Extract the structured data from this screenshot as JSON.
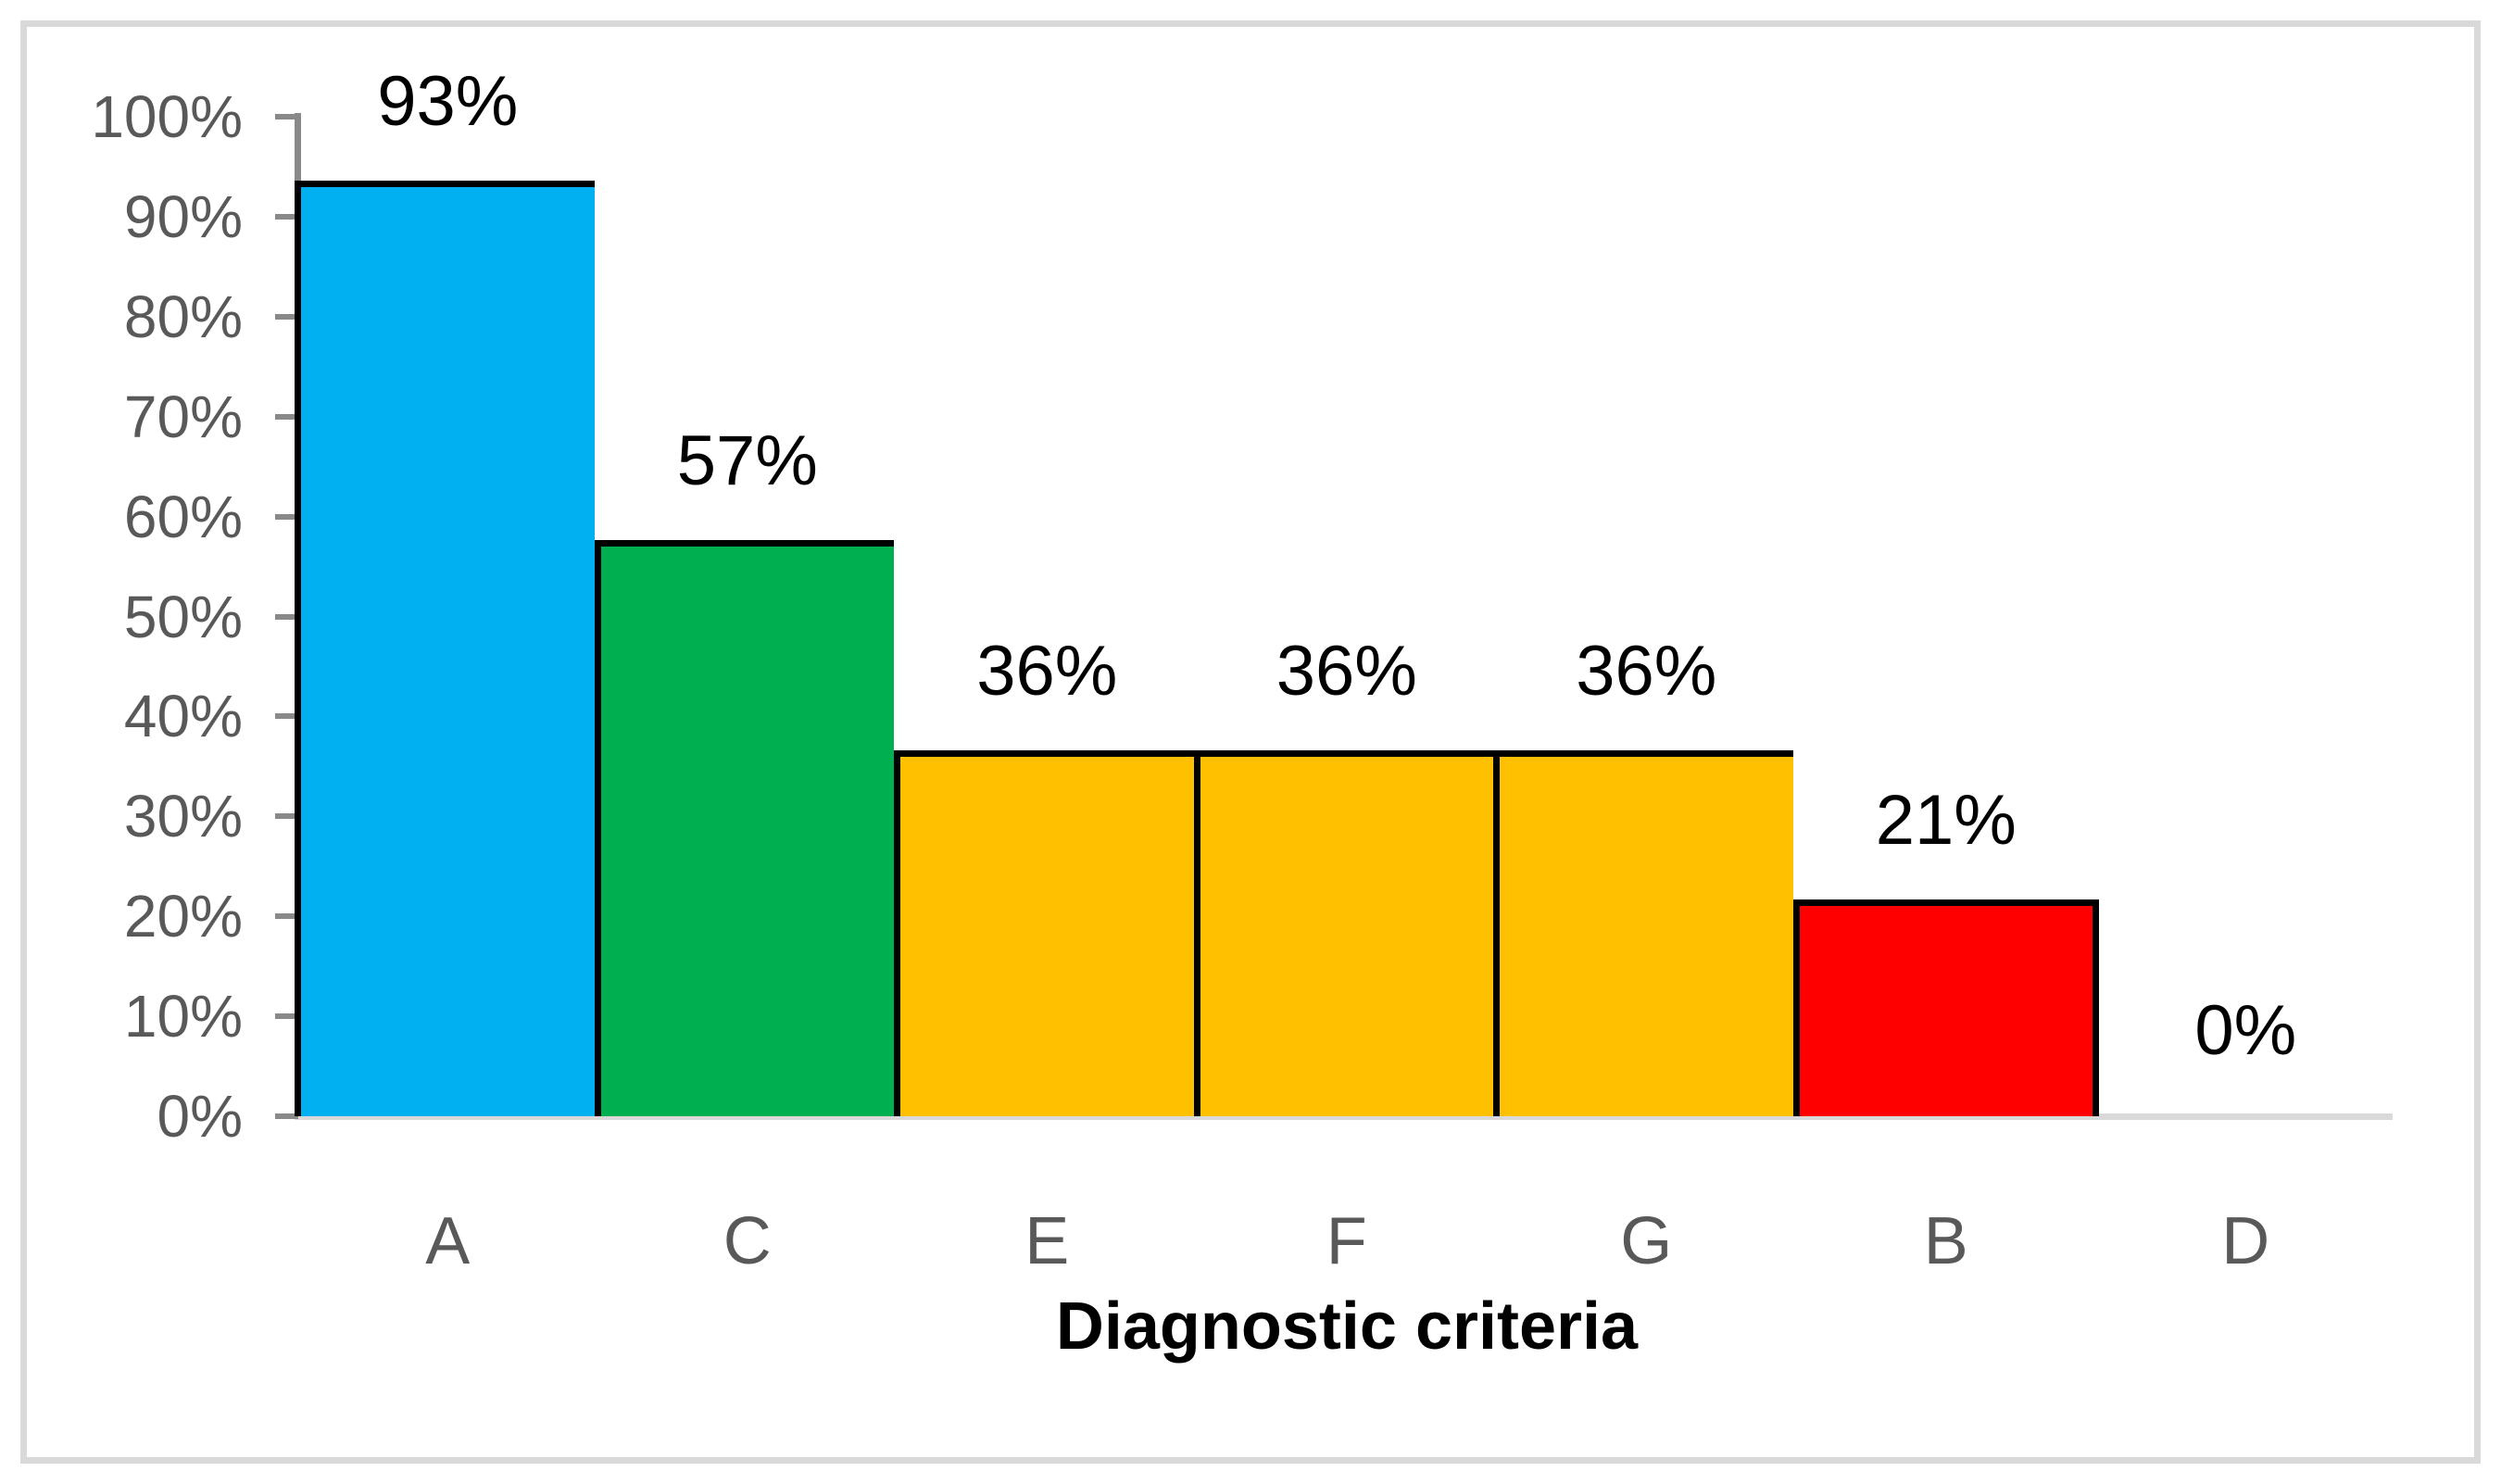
{
  "chart_data": {
    "type": "bar",
    "title": "",
    "xlabel": "Diagnostic criteria",
    "ylabel": "",
    "categories": [
      "A",
      "C",
      "E",
      "F",
      "G",
      "B",
      "D"
    ],
    "values": [
      93,
      57,
      36,
      36,
      36,
      21,
      0
    ],
    "data_labels": [
      "93%",
      "57%",
      "36%",
      "36%",
      "36%",
      "21%",
      "0%"
    ],
    "bar_colors": [
      "#00B0F0",
      "#00B050",
      "#FFC000",
      "#FFC000",
      "#FFC000",
      "#FF0000",
      null
    ],
    "y_ticks": [
      "100%",
      "90%",
      "80%",
      "70%",
      "60%",
      "50%",
      "40%",
      "30%",
      "20%",
      "10%",
      "0%"
    ],
    "ylim": [
      0,
      100
    ],
    "grid": false,
    "legend": "none",
    "bar_gap": 0,
    "data_label_position": "outside-end"
  },
  "colors": {
    "bar_blue": "#00B0F0",
    "bar_green": "#00B050",
    "bar_gold": "#FFC000",
    "bar_red": "#FF0000",
    "bar_border": "#000000",
    "axis_text": "#595959",
    "axis_line": "#898989",
    "baseline": "#D9D9D9",
    "frame_border": "#D9D9D9",
    "data_label_text": "#000000",
    "background": "#FFFFFF"
  }
}
